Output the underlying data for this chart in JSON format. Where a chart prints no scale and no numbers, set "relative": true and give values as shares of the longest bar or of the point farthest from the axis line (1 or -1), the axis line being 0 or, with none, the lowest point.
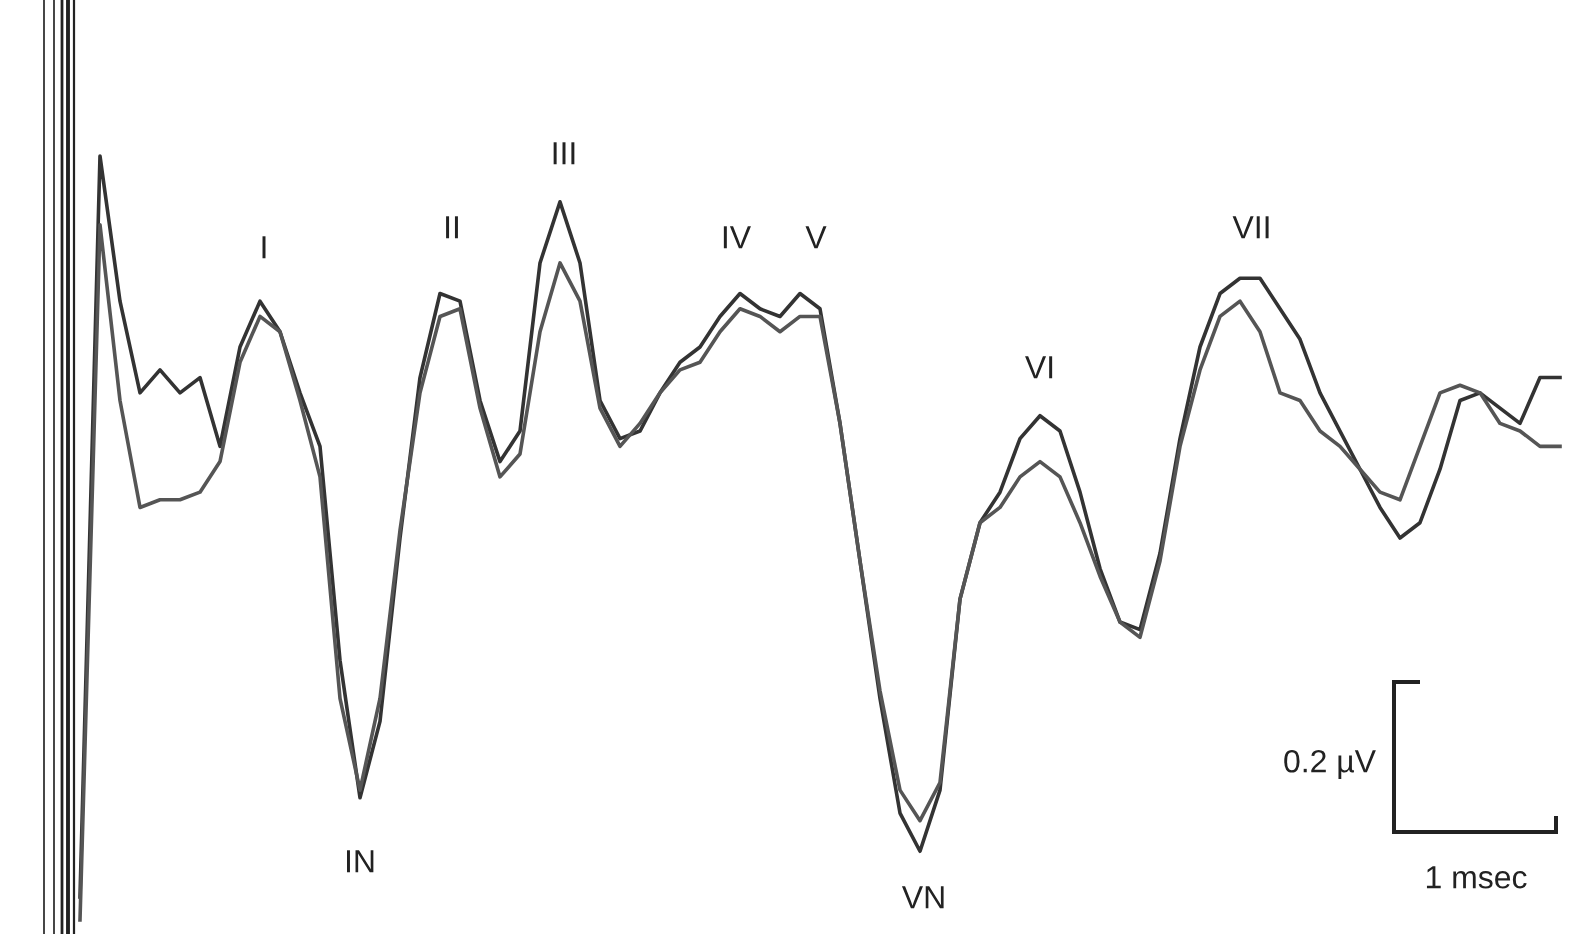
{
  "chart_data": {
    "type": "line",
    "relative": true,
    "categories": [
      null,
      null,
      null,
      null,
      null,
      null,
      null,
      null,
      null,
      null,
      null,
      null,
      null,
      null,
      null,
      null,
      null,
      null,
      null,
      null,
      null,
      null,
      null,
      null,
      null,
      null,
      null,
      null,
      null,
      null,
      null,
      null,
      null,
      null,
      null,
      null,
      null,
      null,
      null,
      null,
      null,
      null,
      null,
      null,
      null,
      null,
      null,
      null,
      null,
      null,
      null,
      null,
      null,
      null,
      null,
      null,
      null,
      null,
      null,
      null,
      null,
      null,
      null,
      null,
      null,
      null,
      null,
      null,
      null,
      null,
      null,
      null,
      null,
      null,
      null
    ],
    "series": [
      {
        "color": "#333333",
        "values": [
          0.03,
          1.0,
          0.81,
          0.69,
          0.72,
          0.69,
          0.71,
          0.62,
          0.75,
          0.81,
          0.77,
          0.69,
          0.62,
          0.34,
          0.16,
          0.26,
          0.5,
          0.71,
          0.82,
          0.81,
          0.68,
          0.6,
          0.64,
          0.86,
          0.94,
          0.86,
          0.68,
          0.63,
          0.64,
          0.69,
          0.73,
          0.75,
          0.79,
          0.82,
          0.8,
          0.79,
          0.82,
          0.8,
          0.65,
          0.47,
          0.29,
          0.14,
          0.09,
          0.17,
          0.42,
          0.52,
          0.56,
          0.63,
          0.66,
          0.64,
          0.56,
          0.46,
          0.39,
          0.38,
          0.48,
          0.63,
          0.75,
          0.82,
          0.84,
          0.84,
          0.8,
          0.76,
          0.69,
          0.64,
          0.59,
          0.54,
          0.5,
          0.52,
          0.59,
          0.68,
          0.69,
          0.67,
          0.65,
          0.71,
          0.71
        ]
      },
      {
        "color": "#555555",
        "values": [
          0.0,
          0.91,
          0.68,
          0.54,
          0.55,
          0.55,
          0.56,
          0.6,
          0.73,
          0.79,
          0.77,
          0.68,
          0.58,
          0.29,
          0.17,
          0.29,
          0.51,
          0.69,
          0.79,
          0.8,
          0.67,
          0.58,
          0.61,
          0.77,
          0.86,
          0.81,
          0.67,
          0.62,
          0.65,
          0.69,
          0.72,
          0.73,
          0.77,
          0.8,
          0.79,
          0.77,
          0.79,
          0.79,
          0.65,
          0.47,
          0.3,
          0.17,
          0.13,
          0.18,
          0.42,
          0.52,
          0.54,
          0.58,
          0.6,
          0.58,
          0.52,
          0.45,
          0.39,
          0.37,
          0.47,
          0.62,
          0.72,
          0.79,
          0.81,
          0.77,
          0.69,
          0.68,
          0.64,
          0.62,
          0.59,
          0.56,
          0.55,
          0.62,
          0.69,
          0.7,
          0.69,
          0.65,
          0.64,
          0.62,
          0.62
        ]
      }
    ],
    "annotations": [
      "I",
      "II",
      "III",
      "IV",
      "V",
      "VI",
      "VII",
      "IN",
      "VN",
      "0.2 µV",
      "1 msec"
    ]
  }
}
